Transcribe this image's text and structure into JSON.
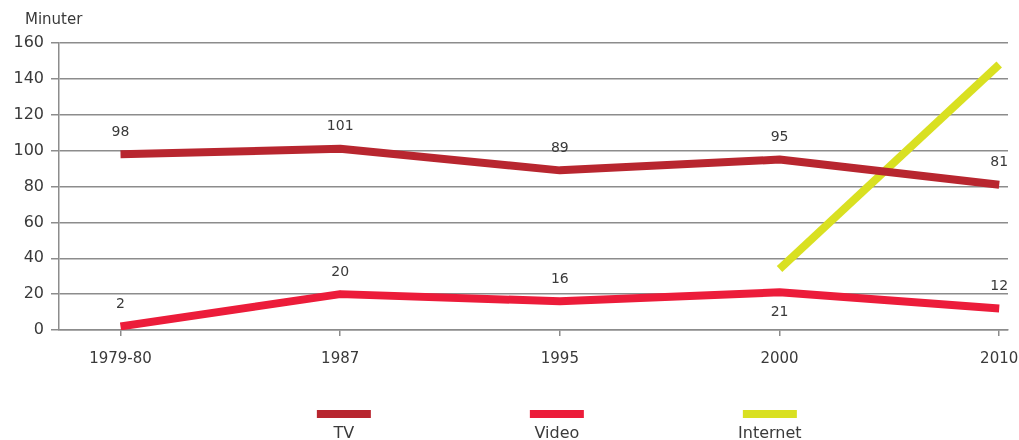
{
  "chart_data": {
    "type": "line",
    "ylabel": "Minuter",
    "categories": [
      "1979-80",
      "1987",
      "1995",
      "2000",
      "2010"
    ],
    "series": [
      {
        "name": "TV",
        "color": "#b8262f",
        "values": [
          98,
          101,
          89,
          95,
          81
        ],
        "value_labels": [
          "98",
          "101",
          "89",
          "95",
          "81"
        ]
      },
      {
        "name": "Video",
        "color": "#ec1c3a",
        "values": [
          2,
          20,
          16,
          21,
          12
        ],
        "value_labels": [
          "2",
          "20",
          "16",
          "21",
          "12"
        ]
      },
      {
        "name": "Internet",
        "color": "#d9e021",
        "values": [
          null,
          null,
          null,
          34,
          148
        ]
      }
    ],
    "ylim": [
      0,
      160
    ],
    "yticks": [
      0,
      20,
      40,
      60,
      80,
      100,
      120,
      140,
      160
    ],
    "grid": "y",
    "legend": "bottom"
  }
}
